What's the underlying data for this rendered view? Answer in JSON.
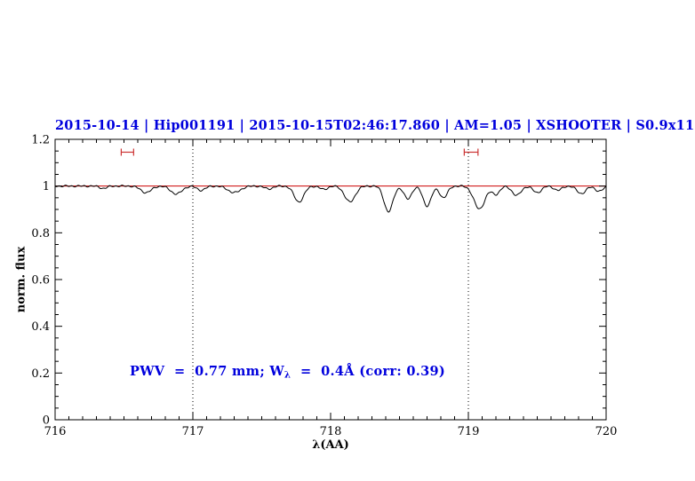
{
  "title": {
    "text": "2015-10-14 | Hip001191 | 2015-10-15T02:46:17.860 | AM=1.05 | XSHOOTER | S0.9x11",
    "color": "#0000dd"
  },
  "annotation": {
    "pre": "PWV  =  0.77 mm; W",
    "sub": "λ",
    "post": "  =  0.4Å (corr: 0.39)",
    "color": "#0000dd"
  },
  "chart_data": {
    "type": "line",
    "title": "2015-10-14 | Hip001191 | 2015-10-15T02:46:17.860 | AM=1.05 | XSHOOTER | S0.9x11",
    "xlabel": "λ(AA)",
    "ylabel": "norm. flux",
    "xlim": [
      716,
      720
    ],
    "ylim": [
      0,
      1.2
    ],
    "xticks": [
      716,
      717,
      718,
      719,
      720
    ],
    "xtick_labels": [
      "716",
      "717",
      "718",
      "719",
      "720"
    ],
    "yticks": [
      0,
      0.2,
      0.4,
      0.6,
      0.8,
      1,
      1.2
    ],
    "ytick_labels": [
      "0",
      "0.2",
      "0.4",
      "0.6",
      "0.8",
      "1",
      "1.2"
    ],
    "minor_x_step": 0.1,
    "minor_y_step": 0.05,
    "grid": false,
    "dotted_vlines": [
      717,
      719
    ],
    "continuum": {
      "y": 1.0,
      "color": "#cc0000"
    },
    "spectrum_color": "#000000",
    "marker_color": "#cc3333",
    "band_markers": [
      {
        "x1": 716.48,
        "x2": 716.57,
        "y": 1.145
      },
      {
        "x1": 718.97,
        "x2": 719.07,
        "y": 1.145
      }
    ],
    "absorption_lines": [
      {
        "center": 716.35,
        "depth": 0.01,
        "sigma": 0.025
      },
      {
        "center": 716.66,
        "depth": 0.028,
        "sigma": 0.038
      },
      {
        "center": 716.88,
        "depth": 0.034,
        "sigma": 0.04
      },
      {
        "center": 717.06,
        "depth": 0.018,
        "sigma": 0.03
      },
      {
        "center": 717.3,
        "depth": 0.028,
        "sigma": 0.045
      },
      {
        "center": 717.55,
        "depth": 0.012,
        "sigma": 0.03
      },
      {
        "center": 717.77,
        "depth": 0.068,
        "sigma": 0.035
      },
      {
        "center": 717.95,
        "depth": 0.014,
        "sigma": 0.028
      },
      {
        "center": 718.14,
        "depth": 0.068,
        "sigma": 0.038
      },
      {
        "center": 718.42,
        "depth": 0.11,
        "sigma": 0.032
      },
      {
        "center": 718.56,
        "depth": 0.055,
        "sigma": 0.028
      },
      {
        "center": 718.7,
        "depth": 0.085,
        "sigma": 0.03
      },
      {
        "center": 718.82,
        "depth": 0.05,
        "sigma": 0.028
      },
      {
        "center": 719.08,
        "depth": 0.098,
        "sigma": 0.04
      },
      {
        "center": 719.2,
        "depth": 0.035,
        "sigma": 0.028
      },
      {
        "center": 719.35,
        "depth": 0.04,
        "sigma": 0.032
      },
      {
        "center": 719.5,
        "depth": 0.028,
        "sigma": 0.03
      },
      {
        "center": 719.65,
        "depth": 0.018,
        "sigma": 0.028
      },
      {
        "center": 719.82,
        "depth": 0.032,
        "sigma": 0.032
      },
      {
        "center": 719.95,
        "depth": 0.022,
        "sigma": 0.028
      }
    ],
    "sample_step": 0.005,
    "noise": [
      {
        "amp": 0.0025,
        "freq": 137.7
      },
      {
        "amp": 0.0015,
        "freq": 61.3
      }
    ]
  }
}
